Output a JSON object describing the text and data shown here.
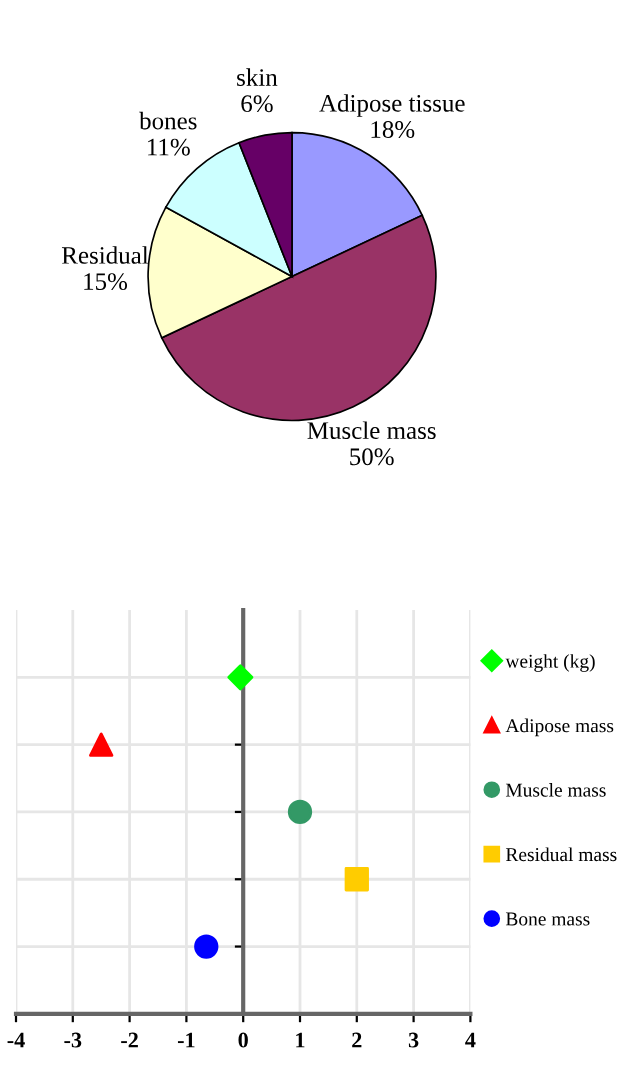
{
  "chart_data": [
    {
      "type": "pie",
      "categories": [
        "Adipose tissue",
        "Muscle mass",
        "Residual",
        "bones",
        "skin"
      ],
      "values": [
        18,
        50,
        15,
        11,
        6
      ],
      "colors": [
        "#9999ff",
        "#993366",
        "#ffffcc",
        "#ccffff",
        "#660066"
      ],
      "value_labels": [
        "18%",
        "50%",
        "15%",
        "11%",
        "6%"
      ]
    },
    {
      "type": "scatter",
      "orientation": "horizontal",
      "categories": [
        null,
        null,
        null,
        null,
        null
      ],
      "xlim": [
        -4,
        4
      ],
      "xticks": [
        -4,
        -3,
        -2,
        -1,
        0,
        1,
        2,
        3,
        4
      ],
      "grid": true,
      "legend": "right",
      "tick_labels": "x",
      "series": [
        {
          "name": "weight (kg)",
          "color": "#00ff00",
          "marker": "diamond",
          "values": [
            -0.05,
            null,
            null,
            null,
            null
          ]
        },
        {
          "name": "Adipose mass",
          "color": "#ff0000",
          "marker": "triangle",
          "values": [
            null,
            -2.5,
            null,
            null,
            null
          ]
        },
        {
          "name": "Muscle mass",
          "color": "#339966",
          "marker": "circle",
          "values": [
            null,
            null,
            1,
            null,
            null
          ]
        },
        {
          "name": "Residual mass",
          "color": "#ffcc00",
          "marker": "square",
          "values": [
            null,
            null,
            null,
            2,
            null
          ]
        },
        {
          "name": "Bone mass",
          "color": "#0000ff",
          "marker": "circle",
          "values": [
            null,
            null,
            null,
            null,
            -0.65
          ]
        }
      ]
    }
  ]
}
